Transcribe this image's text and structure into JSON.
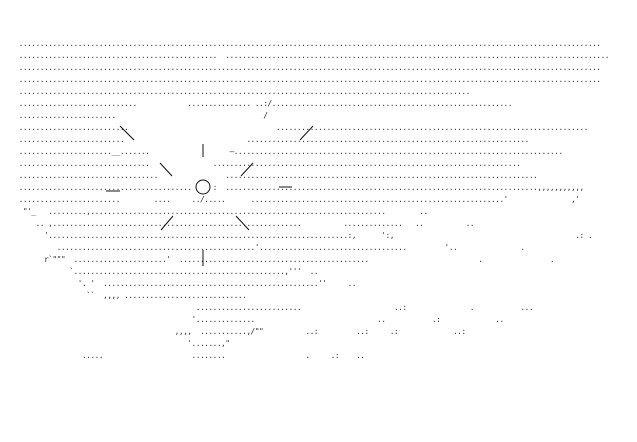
{
  "art": {
    "lines": [
      "   ..........................................................................................................................................",
      "   ...............................................  ...........................................................................................",
      "   ..........................................................................................................................................",
      "   ..........................................................................................................................................",
      "   ...........................................................................................................",
      "   ............................            ............... ..:/.........................................................",
      "   .......................                                   /",
      "   ..........................                                   ..........................................................................",
      "   .........................                             ...................................................................",
      "   ......................__.......                   —..............................................................................",
      "   ...............................               .........................................................................",
      "   .................................                ..........................................................................",
      "   .........................................     :  ..........................................................................,,,,,,,,,,,",
      "   ........................        ....     ../.....      ............................................................'               ,'",
      "    \"'_   .........,......................................................................        ..",
      "       .. ,...........................................................          ..............   ..          ..",
      "         '.......................................................................:,      ':,                                           .: .",
      "            ...............................................'...................................         '..               .",
      "         r`\"\"\"  ......................'  .............................................                          .                .",
      "               `..................................................,'''  ..",
      "                 '. '  ...................................................''     ..",
      "                   ``  ,,,, .............................",
      "                                             .........................                      ..:               .           ...",
      "                                            '..............                             ..           .:             ..",
      "                                        ,,,,  ...........,/\"\"          ..:         ..:     .:             ..:",
      "                                           '.......,\"",
      "                  .....                     ........                   .     .:    .."
    ]
  }
}
